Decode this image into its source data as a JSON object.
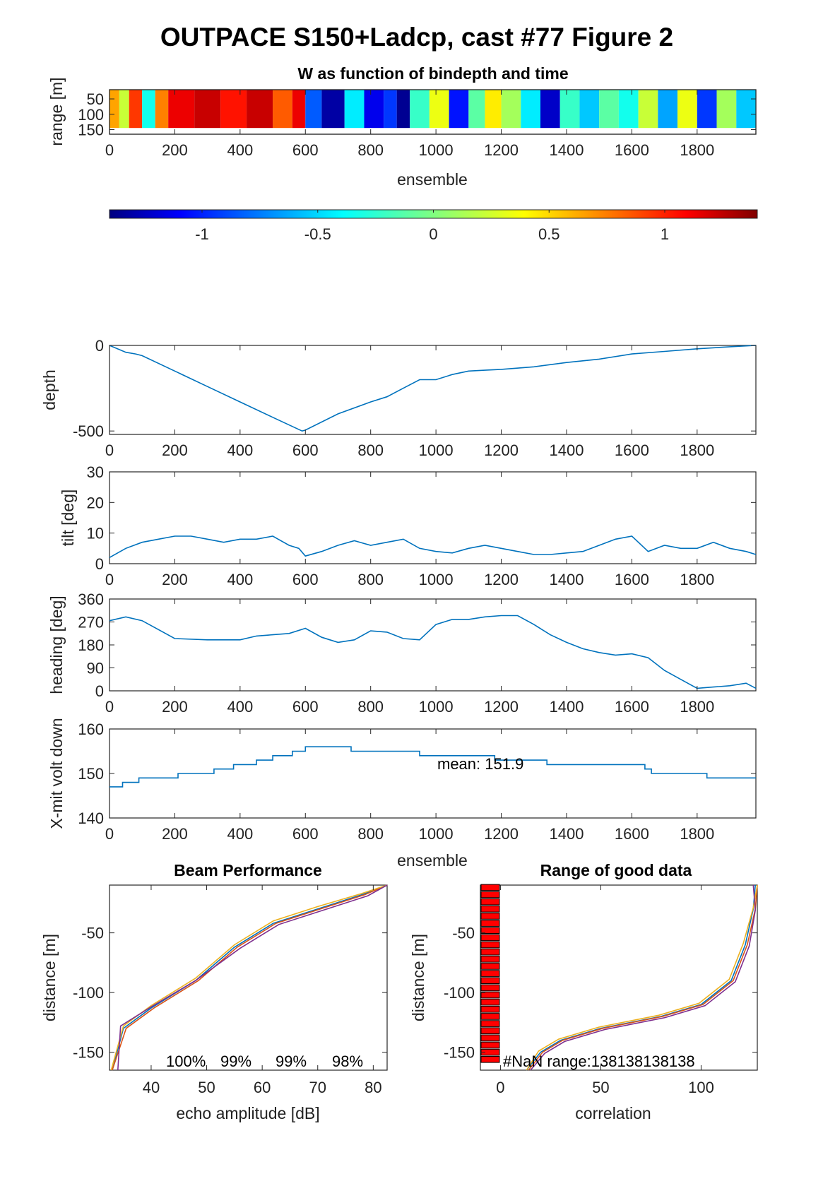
{
  "figure": {
    "title": "OUTPACE S150+Ladcp, cast #77 Figure 2"
  },
  "chart_data": [
    {
      "id": "w-image",
      "type": "heatmap",
      "title": "W as function of bindepth and time",
      "xlabel": "ensemble",
      "ylabel": "range [m]",
      "xlim": [
        0,
        1980
      ],
      "ylim": [
        20,
        165
      ],
      "xticks": [
        "0",
        "200",
        "400",
        "600",
        "800",
        "1000",
        "1200",
        "1400",
        "1600",
        "1800"
      ],
      "yticks": [
        "50",
        "100",
        "150"
      ],
      "segments": [
        {
          "x0": 0,
          "x1": 30,
          "w": 0.6
        },
        {
          "x0": 30,
          "x1": 60,
          "w": 0.2
        },
        {
          "x0": 60,
          "x1": 100,
          "w": 0.9
        },
        {
          "x0": 100,
          "x1": 140,
          "w": -0.3
        },
        {
          "x0": 140,
          "x1": 180,
          "w": 0.7
        },
        {
          "x0": 180,
          "x1": 260,
          "w": 1.1
        },
        {
          "x0": 260,
          "x1": 340,
          "w": 1.2
        },
        {
          "x0": 340,
          "x1": 420,
          "w": 1.0
        },
        {
          "x0": 420,
          "x1": 500,
          "w": 1.2
        },
        {
          "x0": 500,
          "x1": 560,
          "w": 0.8
        },
        {
          "x0": 560,
          "x1": 600,
          "w": 1.1
        },
        {
          "x0": 600,
          "x1": 650,
          "w": -0.8
        },
        {
          "x0": 650,
          "x1": 720,
          "w": -1.3
        },
        {
          "x0": 720,
          "x1": 780,
          "w": -0.4
        },
        {
          "x0": 780,
          "x1": 840,
          "w": -1.1
        },
        {
          "x0": 840,
          "x1": 880,
          "w": -0.9
        },
        {
          "x0": 880,
          "x1": 920,
          "w": -1.35
        },
        {
          "x0": 920,
          "x1": 980,
          "w": -0.2
        },
        {
          "x0": 980,
          "x1": 1040,
          "w": 0.3
        },
        {
          "x0": 1040,
          "x1": 1100,
          "w": -1.0
        },
        {
          "x0": 1100,
          "x1": 1150,
          "w": -0.1
        },
        {
          "x0": 1150,
          "x1": 1200,
          "w": 0.4
        },
        {
          "x0": 1200,
          "x1": 1260,
          "w": 0.1
        },
        {
          "x0": 1260,
          "x1": 1320,
          "w": -0.4
        },
        {
          "x0": 1320,
          "x1": 1380,
          "w": -1.2
        },
        {
          "x0": 1380,
          "x1": 1440,
          "w": -0.2
        },
        {
          "x0": 1440,
          "x1": 1500,
          "w": -0.5
        },
        {
          "x0": 1500,
          "x1": 1560,
          "w": -0.1
        },
        {
          "x0": 1560,
          "x1": 1620,
          "w": -0.3
        },
        {
          "x0": 1620,
          "x1": 1680,
          "w": 0.2
        },
        {
          "x0": 1680,
          "x1": 1740,
          "w": -0.6
        },
        {
          "x0": 1740,
          "x1": 1800,
          "w": 0.3
        },
        {
          "x0": 1800,
          "x1": 1860,
          "w": -0.9
        },
        {
          "x0": 1860,
          "x1": 1920,
          "w": 0.1
        },
        {
          "x0": 1920,
          "x1": 1980,
          "w": -0.5
        }
      ]
    },
    {
      "id": "colorbar",
      "type": "colorbar",
      "clim": [
        -1.4,
        1.4
      ],
      "ticks": [
        -1,
        -0.5,
        0,
        0.5,
        1
      ],
      "tick_labels": [
        "-1",
        "-0.5",
        "0",
        "0.5",
        "1"
      ]
    },
    {
      "id": "depth",
      "type": "line",
      "ylabel": "depth",
      "xlim": [
        0,
        1980
      ],
      "ylim": [
        -520,
        0
      ],
      "xticks": [
        "0",
        "200",
        "400",
        "600",
        "800",
        "1000",
        "1200",
        "1400",
        "1600",
        "1800"
      ],
      "yticks": [
        "0",
        "-500"
      ],
      "x": [
        0,
        50,
        80,
        100,
        200,
        300,
        400,
        500,
        590,
        600,
        700,
        800,
        850,
        900,
        950,
        1000,
        1050,
        1100,
        1150,
        1200,
        1300,
        1400,
        1500,
        1600,
        1700,
        1800,
        1900,
        1980
      ],
      "y": [
        0,
        -40,
        -50,
        -60,
        -150,
        -240,
        -330,
        -420,
        -500,
        -495,
        -400,
        -330,
        -300,
        -250,
        -200,
        -200,
        -170,
        -150,
        -145,
        -140,
        -125,
        -100,
        -80,
        -50,
        -35,
        -20,
        -8,
        0
      ]
    },
    {
      "id": "tilt",
      "type": "line",
      "ylabel": "tilt [deg]",
      "xlim": [
        0,
        1980
      ],
      "ylim": [
        0,
        30
      ],
      "xticks": [
        "0",
        "200",
        "400",
        "600",
        "800",
        "1000",
        "1200",
        "1400",
        "1600",
        "1800"
      ],
      "yticks": [
        "0",
        "10",
        "20",
        "30"
      ],
      "x": [
        0,
        50,
        100,
        150,
        200,
        250,
        300,
        350,
        400,
        450,
        500,
        550,
        580,
        600,
        650,
        700,
        750,
        800,
        850,
        900,
        950,
        1000,
        1050,
        1100,
        1150,
        1200,
        1250,
        1300,
        1350,
        1400,
        1450,
        1500,
        1550,
        1600,
        1650,
        1700,
        1750,
        1800,
        1850,
        1900,
        1950,
        1980
      ],
      "y": [
        2,
        5,
        7,
        8,
        9,
        9,
        8,
        7,
        8,
        8,
        9,
        6,
        5,
        2.5,
        4,
        6,
        7.5,
        6,
        7,
        8,
        5,
        4,
        3.5,
        5,
        6,
        5,
        4,
        3,
        3,
        3.5,
        4,
        6,
        8,
        9,
        4,
        6,
        5,
        5,
        7,
        5,
        4,
        3
      ]
    },
    {
      "id": "heading",
      "type": "line",
      "ylabel": "heading [deg]",
      "xlim": [
        0,
        1980
      ],
      "ylim": [
        0,
        360
      ],
      "xticks": [
        "0",
        "200",
        "400",
        "600",
        "800",
        "1000",
        "1200",
        "1400",
        "1600",
        "1800"
      ],
      "yticks": [
        "0",
        "90",
        "180",
        "270",
        "360"
      ],
      "x": [
        0,
        50,
        100,
        150,
        200,
        300,
        400,
        450,
        500,
        550,
        600,
        650,
        700,
        750,
        800,
        850,
        900,
        950,
        1000,
        1050,
        1100,
        1150,
        1200,
        1250,
        1300,
        1350,
        1400,
        1450,
        1500,
        1550,
        1600,
        1650,
        1700,
        1750,
        1800,
        1850,
        1900,
        1950,
        1980
      ],
      "y": [
        275,
        290,
        275,
        240,
        205,
        200,
        200,
        215,
        220,
        225,
        245,
        210,
        190,
        200,
        235,
        230,
        205,
        200,
        260,
        280,
        280,
        290,
        295,
        295,
        260,
        220,
        190,
        165,
        150,
        140,
        145,
        130,
        80,
        45,
        10,
        15,
        20,
        30,
        10
      ]
    },
    {
      "id": "xmit",
      "type": "line",
      "ylabel": "X-mit volt down",
      "xlabel": "ensemble",
      "xlim": [
        0,
        1980
      ],
      "ylim": [
        140,
        160
      ],
      "xticks": [
        "0",
        "200",
        "400",
        "600",
        "800",
        "1000",
        "1200",
        "1400",
        "1600",
        "1800"
      ],
      "yticks": [
        "140",
        "150",
        "160"
      ],
      "annotation": "mean: 151.9",
      "mean": 151.9,
      "x": [
        0,
        40,
        40,
        90,
        90,
        210,
        210,
        320,
        320,
        380,
        380,
        450,
        450,
        500,
        500,
        560,
        560,
        580,
        580,
        600,
        600,
        740,
        740,
        750,
        750,
        950,
        950,
        1180,
        1180,
        1340,
        1340,
        1640,
        1640,
        1660,
        1660,
        1830,
        1830,
        1870,
        1870,
        1980
      ],
      "y": [
        147,
        147,
        148,
        148,
        149,
        149,
        150,
        150,
        151,
        151,
        152,
        152,
        153,
        153,
        154,
        154,
        155,
        155,
        155,
        155,
        156,
        156,
        155,
        155,
        155,
        155,
        154,
        154,
        153,
        153,
        152,
        152,
        151,
        151,
        150,
        150,
        149,
        149,
        149,
        149
      ]
    },
    {
      "id": "beam",
      "type": "line",
      "title": "Beam Performance",
      "xlabel": "echo amplitude [dB]",
      "ylabel": "distance [m]",
      "xlim": [
        32.5,
        82.5
      ],
      "ylim": [
        -165,
        -10
      ],
      "xticks": [
        "40",
        "50",
        "60",
        "70",
        "80"
      ],
      "yticks": [
        "-50",
        "-100",
        "-150"
      ],
      "annotations": [
        "100%",
        "99%",
        "99%",
        "98%"
      ],
      "series": [
        {
          "color": "#0072BD",
          "x": [
            33,
            35,
            40,
            48,
            55,
            62,
            70,
            78,
            82.5
          ],
          "y": [
            -165,
            -130,
            -113,
            -90,
            -62,
            -42,
            -30,
            -18,
            -10
          ]
        },
        {
          "color": "#D95319",
          "x": [
            33,
            35.5,
            40.5,
            48.5,
            55.5,
            62.5,
            70.5,
            78.5,
            82.5
          ],
          "y": [
            -165,
            -130,
            -113,
            -90,
            -62,
            -42,
            -30,
            -18,
            -10
          ]
        },
        {
          "color": "#EDB120",
          "x": [
            32.8,
            35,
            40,
            48,
            55,
            62,
            70,
            78,
            82.5
          ],
          "y": [
            -165,
            -128,
            -111,
            -88,
            -60,
            -40,
            -28,
            -17,
            -10
          ]
        },
        {
          "color": "#7E2F8E",
          "x": [
            34,
            34.5,
            40,
            48,
            56,
            63,
            71,
            79,
            82.5
          ],
          "y": [
            -165,
            -128,
            -112,
            -90,
            -63,
            -43,
            -31,
            -19,
            -10
          ]
        }
      ]
    },
    {
      "id": "range",
      "type": "line",
      "title": "Range of good data",
      "xlabel": "correlation",
      "ylabel": "distance [m]",
      "xlim": [
        -10,
        128
      ],
      "ylim": [
        -165,
        -10
      ],
      "xticks": [
        "0",
        "50",
        "100"
      ],
      "yticks": [
        "-50",
        "-100",
        "-150"
      ],
      "annotation": "#NaN range:138138138138",
      "bar_max": -0.5,
      "bar_bins": [
        -12,
        -18,
        -24,
        -30,
        -36,
        -42,
        -48,
        -54,
        -60,
        -66,
        -72,
        -78,
        -84,
        -90,
        -96,
        -102,
        -108,
        -114,
        -120,
        -126,
        -132,
        -138,
        -144,
        -150,
        -156
      ],
      "series": [
        {
          "color": "#0072BD",
          "x": [
            13,
            20,
            30,
            50,
            80,
            100,
            115,
            122,
            126,
            127
          ],
          "y": [
            -165,
            -150,
            -140,
            -130,
            -120,
            -110,
            -90,
            -60,
            -30,
            -10
          ]
        },
        {
          "color": "#D95319",
          "x": [
            14,
            21,
            31,
            51,
            81,
            101,
            116,
            123,
            127,
            128
          ],
          "y": [
            -165,
            -150,
            -140,
            -130,
            -120,
            -110,
            -90,
            -60,
            -30,
            -10
          ]
        },
        {
          "color": "#EDB120",
          "x": [
            13,
            19,
            29,
            49,
            79,
            99,
            114,
            121,
            126,
            128
          ],
          "y": [
            -165,
            -149,
            -139,
            -129,
            -119,
            -109,
            -89,
            -59,
            -29,
            -10
          ]
        },
        {
          "color": "#7E2F8E",
          "x": [
            15,
            22,
            32,
            52,
            82,
            102,
            117,
            124,
            127,
            126
          ],
          "y": [
            -165,
            -151,
            -141,
            -131,
            -121,
            -111,
            -91,
            -61,
            -31,
            -10
          ]
        }
      ]
    }
  ]
}
